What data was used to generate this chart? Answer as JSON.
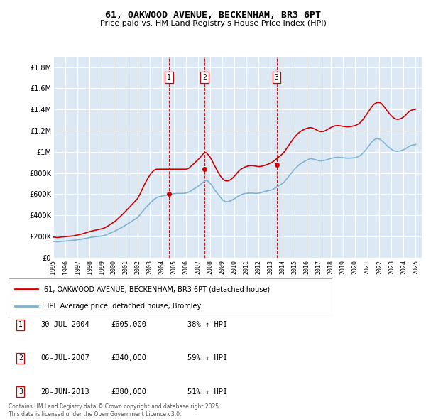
{
  "title": "61, OAKWOOD AVENUE, BECKENHAM, BR3 6PT",
  "subtitle": "Price paid vs. HM Land Registry's House Price Index (HPI)",
  "background_color": "#dce9f5",
  "grid_color": "#ffffff",
  "red_color": "#cc0000",
  "blue_color": "#7fb3d3",
  "ylim": [
    0,
    1900000
  ],
  "yticks": [
    0,
    200000,
    400000,
    600000,
    800000,
    1000000,
    1200000,
    1400000,
    1600000,
    1800000
  ],
  "ytick_labels": [
    "£0",
    "£200K",
    "£400K",
    "£600K",
    "£800K",
    "£1M",
    "£1.2M",
    "£1.4M",
    "£1.6M",
    "£1.8M"
  ],
  "sale_dates_num": [
    2004.58,
    2007.52,
    2013.49
  ],
  "sale_prices": [
    605000,
    840000,
    880000
  ],
  "sale_labels": [
    "1",
    "2",
    "3"
  ],
  "legend_line1": "61, OAKWOOD AVENUE, BECKENHAM, BR3 6PT (detached house)",
  "legend_line2": "HPI: Average price, detached house, Bromley",
  "table": [
    [
      "1",
      "30-JUL-2004",
      "£605,000",
      "38% ↑ HPI"
    ],
    [
      "2",
      "06-JUL-2007",
      "£840,000",
      "59% ↑ HPI"
    ],
    [
      "3",
      "28-JUN-2013",
      "£880,000",
      "51% ↑ HPI"
    ]
  ],
  "footer": "Contains HM Land Registry data © Crown copyright and database right 2025.\nThis data is licensed under the Open Government Licence v3.0.",
  "hpi_data": {
    "years": [
      1995.0,
      1995.08,
      1995.17,
      1995.25,
      1995.33,
      1995.42,
      1995.5,
      1995.58,
      1995.67,
      1995.75,
      1995.83,
      1995.92,
      1996.0,
      1996.08,
      1996.17,
      1996.25,
      1996.33,
      1996.42,
      1996.5,
      1996.58,
      1996.67,
      1996.75,
      1996.83,
      1996.92,
      1997.0,
      1997.08,
      1997.17,
      1997.25,
      1997.33,
      1997.42,
      1997.5,
      1997.58,
      1997.67,
      1997.75,
      1997.83,
      1997.92,
      1998.0,
      1998.08,
      1998.17,
      1998.25,
      1998.33,
      1998.42,
      1998.5,
      1998.58,
      1998.67,
      1998.75,
      1998.83,
      1998.92,
      1999.0,
      1999.08,
      1999.17,
      1999.25,
      1999.33,
      1999.42,
      1999.5,
      1999.58,
      1999.67,
      1999.75,
      1999.83,
      1999.92,
      2000.0,
      2000.08,
      2000.17,
      2000.25,
      2000.33,
      2000.42,
      2000.5,
      2000.58,
      2000.67,
      2000.75,
      2000.83,
      2000.92,
      2001.0,
      2001.08,
      2001.17,
      2001.25,
      2001.33,
      2001.42,
      2001.5,
      2001.58,
      2001.67,
      2001.75,
      2001.83,
      2001.92,
      2002.0,
      2002.08,
      2002.17,
      2002.25,
      2002.33,
      2002.42,
      2002.5,
      2002.58,
      2002.67,
      2002.75,
      2002.83,
      2002.92,
      2003.0,
      2003.08,
      2003.17,
      2003.25,
      2003.33,
      2003.42,
      2003.5,
      2003.58,
      2003.67,
      2003.75,
      2003.83,
      2003.92,
      2004.0,
      2004.08,
      2004.17,
      2004.25,
      2004.33,
      2004.42,
      2004.5,
      2004.58,
      2004.67,
      2004.75,
      2004.83,
      2004.92,
      2005.0,
      2005.08,
      2005.17,
      2005.25,
      2005.33,
      2005.42,
      2005.5,
      2005.58,
      2005.67,
      2005.75,
      2005.83,
      2005.92,
      2006.0,
      2006.08,
      2006.17,
      2006.25,
      2006.33,
      2006.42,
      2006.5,
      2006.58,
      2006.67,
      2006.75,
      2006.83,
      2006.92,
      2007.0,
      2007.08,
      2007.17,
      2007.25,
      2007.33,
      2007.42,
      2007.5,
      2007.58,
      2007.67,
      2007.75,
      2007.83,
      2007.92,
      2008.0,
      2008.08,
      2008.17,
      2008.25,
      2008.33,
      2008.42,
      2008.5,
      2008.58,
      2008.67,
      2008.75,
      2008.83,
      2008.92,
      2009.0,
      2009.08,
      2009.17,
      2009.25,
      2009.33,
      2009.42,
      2009.5,
      2009.58,
      2009.67,
      2009.75,
      2009.83,
      2009.92,
      2010.0,
      2010.08,
      2010.17,
      2010.25,
      2010.33,
      2010.42,
      2010.5,
      2010.58,
      2010.67,
      2010.75,
      2010.83,
      2010.92,
      2011.0,
      2011.08,
      2011.17,
      2011.25,
      2011.33,
      2011.42,
      2011.5,
      2011.58,
      2011.67,
      2011.75,
      2011.83,
      2011.92,
      2012.0,
      2012.08,
      2012.17,
      2012.25,
      2012.33,
      2012.42,
      2012.5,
      2012.58,
      2012.67,
      2012.75,
      2012.83,
      2012.92,
      2013.0,
      2013.08,
      2013.17,
      2013.25,
      2013.33,
      2013.42,
      2013.5,
      2013.58,
      2013.67,
      2013.75,
      2013.83,
      2013.92,
      2014.0,
      2014.08,
      2014.17,
      2014.25,
      2014.33,
      2014.42,
      2014.5,
      2014.58,
      2014.67,
      2014.75,
      2014.83,
      2014.92,
      2015.0,
      2015.08,
      2015.17,
      2015.25,
      2015.33,
      2015.42,
      2015.5,
      2015.58,
      2015.67,
      2015.75,
      2015.83,
      2015.92,
      2016.0,
      2016.08,
      2016.17,
      2016.25,
      2016.33,
      2016.42,
      2016.5,
      2016.58,
      2016.67,
      2016.75,
      2016.83,
      2016.92,
      2017.0,
      2017.08,
      2017.17,
      2017.25,
      2017.33,
      2017.42,
      2017.5,
      2017.58,
      2017.67,
      2017.75,
      2017.83,
      2017.92,
      2018.0,
      2018.08,
      2018.17,
      2018.25,
      2018.33,
      2018.42,
      2018.5,
      2018.58,
      2018.67,
      2018.75,
      2018.83,
      2018.92,
      2019.0,
      2019.08,
      2019.17,
      2019.25,
      2019.33,
      2019.42,
      2019.5,
      2019.58,
      2019.67,
      2019.75,
      2019.83,
      2019.92,
      2020.0,
      2020.08,
      2020.17,
      2020.25,
      2020.33,
      2020.42,
      2020.5,
      2020.58,
      2020.67,
      2020.75,
      2020.83,
      2020.92,
      2021.0,
      2021.08,
      2021.17,
      2021.25,
      2021.33,
      2021.42,
      2021.5,
      2021.58,
      2021.67,
      2021.75,
      2021.83,
      2021.92,
      2022.0,
      2022.08,
      2022.17,
      2022.25,
      2022.33,
      2022.42,
      2022.5,
      2022.58,
      2022.67,
      2022.75,
      2022.83,
      2022.92,
      2023.0,
      2023.08,
      2023.17,
      2023.25,
      2023.33,
      2023.42,
      2023.5,
      2023.58,
      2023.67,
      2023.75,
      2023.83,
      2023.92,
      2024.0,
      2024.08,
      2024.17,
      2024.25,
      2024.33,
      2024.42,
      2024.5,
      2024.58,
      2024.67,
      2024.75,
      2024.83,
      2024.92,
      2025.0
    ],
    "hpi_values": [
      155000,
      153000,
      152000,
      151000,
      150000,
      151000,
      152000,
      153000,
      154000,
      155000,
      156000,
      157000,
      157000,
      158000,
      158000,
      159000,
      160000,
      161000,
      162000,
      163000,
      164000,
      165000,
      166000,
      167000,
      168000,
      169000,
      170000,
      172000,
      174000,
      176000,
      178000,
      180000,
      182000,
      184000,
      186000,
      188000,
      190000,
      192000,
      193000,
      194000,
      196000,
      197000,
      198000,
      199000,
      200000,
      201000,
      202000,
      203000,
      204000,
      206000,
      208000,
      211000,
      214000,
      218000,
      222000,
      226000,
      230000,
      234000,
      238000,
      242000,
      246000,
      250000,
      255000,
      260000,
      265000,
      270000,
      275000,
      280000,
      285000,
      290000,
      296000,
      302000,
      308000,
      314000,
      320000,
      326000,
      332000,
      338000,
      344000,
      350000,
      356000,
      362000,
      368000,
      374000,
      380000,
      392000,
      404000,
      416000,
      428000,
      440000,
      452000,
      464000,
      474000,
      484000,
      494000,
      504000,
      514000,
      524000,
      532000,
      540000,
      548000,
      556000,
      562000,
      568000,
      572000,
      576000,
      578000,
      580000,
      582000,
      584000,
      586000,
      588000,
      590000,
      592000,
      594000,
      596000,
      598000,
      600000,
      602000,
      604000,
      605000,
      606000,
      607000,
      607000,
      607000,
      607000,
      607000,
      607000,
      607000,
      608000,
      609000,
      610000,
      612000,
      614000,
      618000,
      622000,
      627000,
      633000,
      639000,
      645000,
      651000,
      657000,
      663000,
      669000,
      675000,
      682000,
      690000,
      698000,
      706000,
      714000,
      720000,
      726000,
      730000,
      726000,
      720000,
      710000,
      700000,
      688000,
      675000,
      660000,
      645000,
      632000,
      620000,
      608000,
      596000,
      584000,
      572000,
      560000,
      548000,
      540000,
      534000,
      530000,
      528000,
      528000,
      530000,
      533000,
      537000,
      541000,
      546000,
      551000,
      557000,
      563000,
      570000,
      577000,
      582000,
      587000,
      592000,
      596000,
      600000,
      603000,
      605000,
      607000,
      608000,
      609000,
      610000,
      610000,
      610000,
      610000,
      610000,
      609000,
      608000,
      607000,
      607000,
      608000,
      610000,
      612000,
      614000,
      617000,
      620000,
      623000,
      625000,
      627000,
      629000,
      631000,
      633000,
      635000,
      637000,
      640000,
      644000,
      649000,
      655000,
      661000,
      667000,
      673000,
      679000,
      685000,
      691000,
      697000,
      703000,
      712000,
      722000,
      734000,
      746000,
      758000,
      770000,
      782000,
      794000,
      806000,
      817000,
      828000,
      839000,
      849000,
      858000,
      867000,
      876000,
      883000,
      890000,
      896000,
      901000,
      907000,
      912000,
      917000,
      922000,
      927000,
      931000,
      934000,
      935000,
      934000,
      932000,
      930000,
      927000,
      924000,
      921000,
      918000,
      916000,
      915000,
      915000,
      916000,
      917000,
      919000,
      921000,
      923000,
      926000,
      929000,
      932000,
      935000,
      938000,
      940000,
      942000,
      944000,
      946000,
      947000,
      948000,
      948000,
      948000,
      947000,
      946000,
      945000,
      944000,
      943000,
      942000,
      941000,
      940000,
      940000,
      940000,
      940000,
      941000,
      942000,
      943000,
      944000,
      945000,
      948000,
      952000,
      955000,
      960000,
      966000,
      973000,
      982000,
      992000,
      1003000,
      1014000,
      1025000,
      1037000,
      1050000,
      1063000,
      1076000,
      1088000,
      1099000,
      1108000,
      1115000,
      1120000,
      1123000,
      1124000,
      1123000,
      1120000,
      1115000,
      1108000,
      1100000,
      1092000,
      1082000,
      1073000,
      1063000,
      1054000,
      1046000,
      1038000,
      1030000,
      1023000,
      1017000,
      1012000,
      1009000,
      1007000,
      1006000,
      1006000,
      1007000,
      1008000,
      1010000,
      1013000,
      1016000,
      1020000,
      1025000,
      1030000,
      1036000,
      1043000,
      1049000,
      1055000,
      1059000,
      1062000,
      1064000,
      1066000,
      1068000,
      1070000
    ],
    "red_values": [
      195000,
      194000,
      193000,
      192000,
      191000,
      192000,
      193000,
      194000,
      195000,
      196000,
      197000,
      198000,
      199000,
      200000,
      200000,
      201000,
      202000,
      203000,
      204000,
      205000,
      206000,
      208000,
      210000,
      212000,
      214000,
      216000,
      218000,
      220000,
      222000,
      225000,
      228000,
      231000,
      234000,
      237000,
      240000,
      243000,
      246000,
      249000,
      251000,
      253000,
      256000,
      258000,
      260000,
      262000,
      264000,
      266000,
      268000,
      270000,
      272000,
      275000,
      278000,
      282000,
      287000,
      292000,
      298000,
      304000,
      310000,
      316000,
      322000,
      328000,
      334000,
      341000,
      349000,
      357000,
      366000,
      375000,
      384000,
      393000,
      402000,
      411000,
      420000,
      430000,
      440000,
      450000,
      460000,
      470000,
      480000,
      490000,
      500000,
      510000,
      520000,
      530000,
      540000,
      550000,
      562000,
      580000,
      598000,
      618000,
      638000,
      658000,
      678000,
      698000,
      716000,
      734000,
      750000,
      766000,
      780000,
      794000,
      806000,
      816000,
      824000,
      830000,
      834000,
      836000,
      836000,
      836000,
      836000,
      836000,
      836000,
      836000,
      836000,
      836000,
      836000,
      836000,
      836000,
      836000,
      836000,
      836000,
      836000,
      836000,
      836000,
      836000,
      836000,
      836000,
      836000,
      836000,
      836000,
      836000,
      836000,
      836000,
      836000,
      836000,
      836000,
      838000,
      843000,
      849000,
      857000,
      865000,
      873000,
      882000,
      891000,
      900000,
      909000,
      918000,
      927000,
      937000,
      948000,
      960000,
      971000,
      981000,
      989000,
      993000,
      990000,
      982000,
      972000,
      960000,
      946000,
      930000,
      912000,
      893000,
      874000,
      856000,
      838000,
      820000,
      803000,
      787000,
      773000,
      760000,
      748000,
      739000,
      732000,
      727000,
      725000,
      725000,
      727000,
      731000,
      737000,
      744000,
      752000,
      761000,
      771000,
      782000,
      793000,
      805000,
      815000,
      824000,
      832000,
      839000,
      845000,
      850000,
      855000,
      859000,
      862000,
      864000,
      866000,
      868000,
      869000,
      869000,
      869000,
      868000,
      867000,
      865000,
      863000,
      862000,
      861000,
      861000,
      862000,
      864000,
      866000,
      869000,
      872000,
      875000,
      878000,
      882000,
      886000,
      890000,
      894000,
      899000,
      905000,
      912000,
      919000,
      927000,
      935000,
      943000,
      951000,
      959000,
      967000,
      975000,
      983000,
      994000,
      1006000,
      1020000,
      1034000,
      1048000,
      1062000,
      1076000,
      1090000,
      1104000,
      1117000,
      1129000,
      1141000,
      1152000,
      1162000,
      1172000,
      1181000,
      1188000,
      1195000,
      1201000,
      1206000,
      1211000,
      1215000,
      1219000,
      1222000,
      1225000,
      1227000,
      1228000,
      1228000,
      1226000,
      1223000,
      1219000,
      1214000,
      1209000,
      1204000,
      1199000,
      1195000,
      1192000,
      1191000,
      1191000,
      1192000,
      1195000,
      1199000,
      1204000,
      1209000,
      1215000,
      1220000,
      1226000,
      1231000,
      1236000,
      1240000,
      1243000,
      1246000,
      1247000,
      1248000,
      1248000,
      1247000,
      1246000,
      1244000,
      1242000,
      1241000,
      1240000,
      1239000,
      1238000,
      1237000,
      1237000,
      1238000,
      1239000,
      1240000,
      1242000,
      1244000,
      1246000,
      1249000,
      1253000,
      1258000,
      1263000,
      1270000,
      1278000,
      1287000,
      1298000,
      1310000,
      1324000,
      1337000,
      1350000,
      1364000,
      1378000,
      1393000,
      1408000,
      1421000,
      1433000,
      1444000,
      1452000,
      1458000,
      1463000,
      1466000,
      1467000,
      1466000,
      1462000,
      1455000,
      1445000,
      1434000,
      1422000,
      1409000,
      1396000,
      1383000,
      1371000,
      1360000,
      1349000,
      1339000,
      1330000,
      1322000,
      1316000,
      1311000,
      1308000,
      1307000,
      1308000,
      1310000,
      1313000,
      1318000,
      1323000,
      1330000,
      1338000,
      1347000,
      1357000,
      1367000,
      1376000,
      1384000,
      1390000,
      1394000,
      1397000,
      1399000,
      1401000,
      1403000
    ]
  },
  "xtick_years": [
    1995,
    1996,
    1997,
    1998,
    1999,
    2000,
    2001,
    2002,
    2003,
    2004,
    2005,
    2006,
    2007,
    2008,
    2009,
    2010,
    2011,
    2012,
    2013,
    2014,
    2015,
    2016,
    2017,
    2018,
    2019,
    2020,
    2021,
    2022,
    2023,
    2024,
    2025
  ]
}
